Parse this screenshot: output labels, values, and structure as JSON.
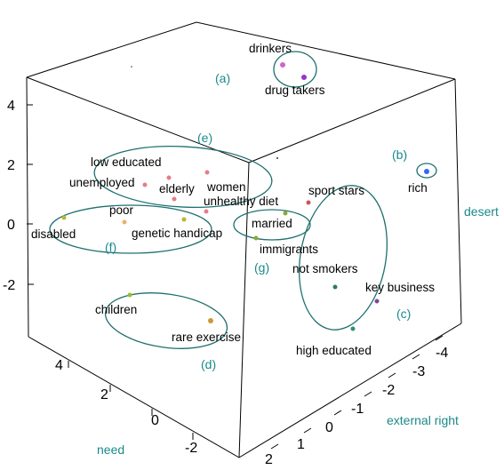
{
  "chart_data": {
    "type": "scatter3d",
    "title": "",
    "axes": {
      "vertical": {
        "label": "",
        "range": [
          -3,
          5
        ],
        "ticks": [
          "4",
          "2",
          "0",
          "-2"
        ]
      },
      "need": {
        "label": "need",
        "range": [
          -3,
          5
        ],
        "ticks": [
          "4",
          "2",
          "0",
          "-2"
        ]
      },
      "external_right": {
        "label": "external right",
        "range": [
          -4,
          2
        ],
        "ticks": [
          "-4",
          "-3",
          "-2",
          "-1",
          "0",
          "1",
          "2"
        ]
      },
      "desert": {
        "label": "desert"
      }
    },
    "points": [
      {
        "label": "drinkers",
        "color": "#cc66cc"
      },
      {
        "label": "drug takers",
        "color": "#9933cc"
      },
      {
        "label": "rich",
        "color": "#3366ff"
      },
      {
        "label": "low educated",
        "color": "#e87b8b"
      },
      {
        "label": "unemployed",
        "color": "#e87b8b"
      },
      {
        "label": "elderly",
        "color": "#e87b8b"
      },
      {
        "label": "women",
        "color": "#e87b8b"
      },
      {
        "label": "unhealthy diet",
        "color": "#e87b8b"
      },
      {
        "label": "poor",
        "color": "#e8b36a"
      },
      {
        "label": "disabled",
        "color": "#b8b830"
      },
      {
        "label": "genetic handicap",
        "color": "#b8b830"
      },
      {
        "label": "married",
        "color": "#88aa33"
      },
      {
        "label": "immigrants",
        "color": "#88aa33"
      },
      {
        "label": "sport stars",
        "color": "#cc5555"
      },
      {
        "label": "not smokers",
        "color": "#2e7a5e"
      },
      {
        "label": "key business",
        "color": "#7a4a9a"
      },
      {
        "label": "high educated",
        "color": "#2e8f6f"
      },
      {
        "label": "children",
        "color": "#99bb33"
      },
      {
        "label": "rare exercise",
        "color": "#cc9933"
      }
    ],
    "groups": [
      "(a)",
      "(b)",
      "(c)",
      "(d)",
      "(e)",
      "(f)",
      "(g)"
    ],
    "colors": {
      "group_ellipse": "#1f6f6f",
      "group_label": "#1a8a8a",
      "box": "#000000"
    }
  }
}
